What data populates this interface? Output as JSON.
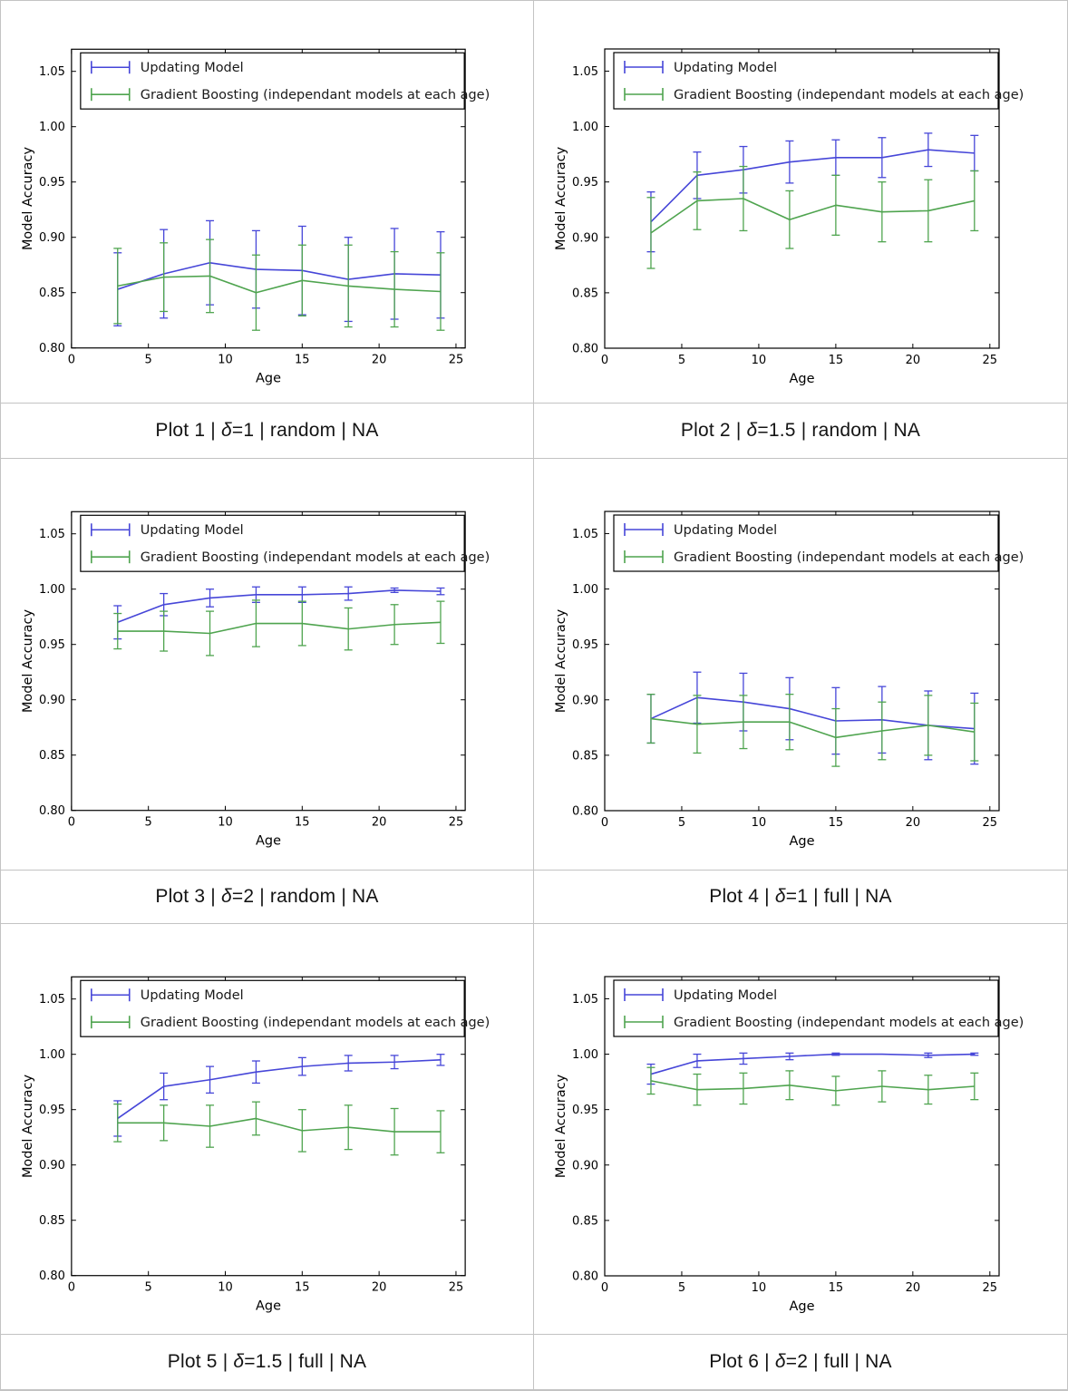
{
  "page": {
    "background": "#ffffff",
    "grid_border_color": "#c3c3c3"
  },
  "chart_defaults": {
    "type": "line",
    "x": [
      3,
      6,
      9,
      12,
      15,
      18,
      21,
      24
    ],
    "xlabel": "Age",
    "ylabel": "Model Accuracy",
    "xticks": [
      0,
      5,
      10,
      15,
      20,
      25
    ],
    "yticks": [
      0.8,
      0.85,
      0.9,
      0.95,
      1.0,
      1.05
    ],
    "xlim": [
      0,
      25.6
    ],
    "ylim": [
      0.8,
      1.07
    ],
    "grid": "off",
    "legend_position": "upper left",
    "legend": [
      {
        "label": "Updating Model",
        "color": "#4646d8"
      },
      {
        "label": "Gradient Boosting (independant models at each age)",
        "color": "#4fa44f"
      }
    ]
  },
  "chart_data": [
    {
      "type": "line",
      "title": "Plot 1 | δ=1 | random | NA",
      "caption": {
        "before": "Plot 1 | ",
        "delta": "δ",
        "after": "=1 | random | NA"
      },
      "series": [
        {
          "name": "Updating Model",
          "values": [
            0.853,
            0.867,
            0.877,
            0.871,
            0.87,
            0.862,
            0.867,
            0.866
          ],
          "errors": [
            0.033,
            0.04,
            0.038,
            0.035,
            0.04,
            0.038,
            0.041,
            0.039
          ]
        },
        {
          "name": "Gradient Boosting (independant models at each age)",
          "values": [
            0.856,
            0.864,
            0.865,
            0.85,
            0.861,
            0.856,
            0.853,
            0.851
          ],
          "errors": [
            0.034,
            0.031,
            0.033,
            0.034,
            0.032,
            0.037,
            0.034,
            0.035
          ]
        }
      ]
    },
    {
      "type": "line",
      "title": "Plot 2 | δ=1.5 | random | NA",
      "caption": {
        "before": "Plot 2 | ",
        "delta": "δ",
        "after": "=1.5 | random | NA"
      },
      "series": [
        {
          "name": "Updating Model",
          "values": [
            0.914,
            0.956,
            0.961,
            0.968,
            0.972,
            0.972,
            0.979,
            0.976
          ],
          "errors": [
            0.027,
            0.021,
            0.021,
            0.019,
            0.016,
            0.018,
            0.015,
            0.016
          ]
        },
        {
          "name": "Gradient Boosting (independant models at each age)",
          "values": [
            0.904,
            0.933,
            0.935,
            0.916,
            0.929,
            0.923,
            0.924,
            0.933
          ],
          "errors": [
            0.032,
            0.026,
            0.029,
            0.026,
            0.027,
            0.027,
            0.028,
            0.027
          ]
        }
      ]
    },
    {
      "type": "line",
      "title": "Plot 3 | δ=2 | random | NA",
      "caption": {
        "before": "Plot 3 | ",
        "delta": "δ",
        "after": "=2 | random | NA"
      },
      "series": [
        {
          "name": "Updating Model",
          "values": [
            0.97,
            0.986,
            0.992,
            0.995,
            0.995,
            0.996,
            0.999,
            0.998
          ],
          "errors": [
            0.015,
            0.01,
            0.008,
            0.007,
            0.007,
            0.006,
            0.002,
            0.003
          ]
        },
        {
          "name": "Gradient Boosting (independant models at each age)",
          "values": [
            0.962,
            0.962,
            0.96,
            0.969,
            0.969,
            0.964,
            0.968,
            0.97
          ],
          "errors": [
            0.016,
            0.018,
            0.02,
            0.021,
            0.02,
            0.019,
            0.018,
            0.019
          ]
        }
      ]
    },
    {
      "type": "line",
      "title": "Plot 4 | δ=1 | full | NA",
      "caption": {
        "before": "Plot 4 | ",
        "delta": "δ",
        "after": "=1 | full | NA"
      },
      "series": [
        {
          "name": "Updating Model",
          "values": [
            0.883,
            0.902,
            0.898,
            0.892,
            0.881,
            0.882,
            0.877,
            0.874
          ],
          "errors": [
            0.022,
            0.023,
            0.026,
            0.028,
            0.03,
            0.03,
            0.031,
            0.032
          ]
        },
        {
          "name": "Gradient Boosting (independant models at each age)",
          "values": [
            0.883,
            0.878,
            0.88,
            0.88,
            0.866,
            0.872,
            0.877,
            0.871
          ],
          "errors": [
            0.022,
            0.026,
            0.024,
            0.025,
            0.026,
            0.026,
            0.027,
            0.026
          ]
        }
      ]
    },
    {
      "type": "line",
      "title": "Plot 5 | δ=1.5 | full | NA",
      "caption": {
        "before": "Plot 5 | ",
        "delta": "δ",
        "after": "=1.5 | full | NA"
      },
      "series": [
        {
          "name": "Updating Model",
          "values": [
            0.942,
            0.971,
            0.977,
            0.984,
            0.989,
            0.992,
            0.993,
            0.995
          ],
          "errors": [
            0.016,
            0.012,
            0.012,
            0.01,
            0.008,
            0.007,
            0.006,
            0.005
          ]
        },
        {
          "name": "Gradient Boosting (independant models at each age)",
          "values": [
            0.938,
            0.938,
            0.935,
            0.942,
            0.931,
            0.934,
            0.93,
            0.93
          ],
          "errors": [
            0.017,
            0.016,
            0.019,
            0.015,
            0.019,
            0.02,
            0.021,
            0.019
          ]
        }
      ]
    },
    {
      "type": "line",
      "title": "Plot 6 | δ=2 | full | NA",
      "caption": {
        "before": "Plot 6 | ",
        "delta": "δ",
        "after": "=2 | full | NA"
      },
      "series": [
        {
          "name": "Updating Model",
          "values": [
            0.982,
            0.994,
            0.996,
            0.998,
            1.0,
            1.0,
            0.999,
            1.0
          ],
          "errors": [
            0.009,
            0.006,
            0.005,
            0.003,
            0.001,
            0.0,
            0.002,
            0.001
          ]
        },
        {
          "name": "Gradient Boosting (independant models at each age)",
          "values": [
            0.976,
            0.968,
            0.969,
            0.972,
            0.967,
            0.971,
            0.968,
            0.971
          ],
          "errors": [
            0.012,
            0.014,
            0.014,
            0.013,
            0.013,
            0.014,
            0.013,
            0.012
          ]
        }
      ]
    }
  ]
}
